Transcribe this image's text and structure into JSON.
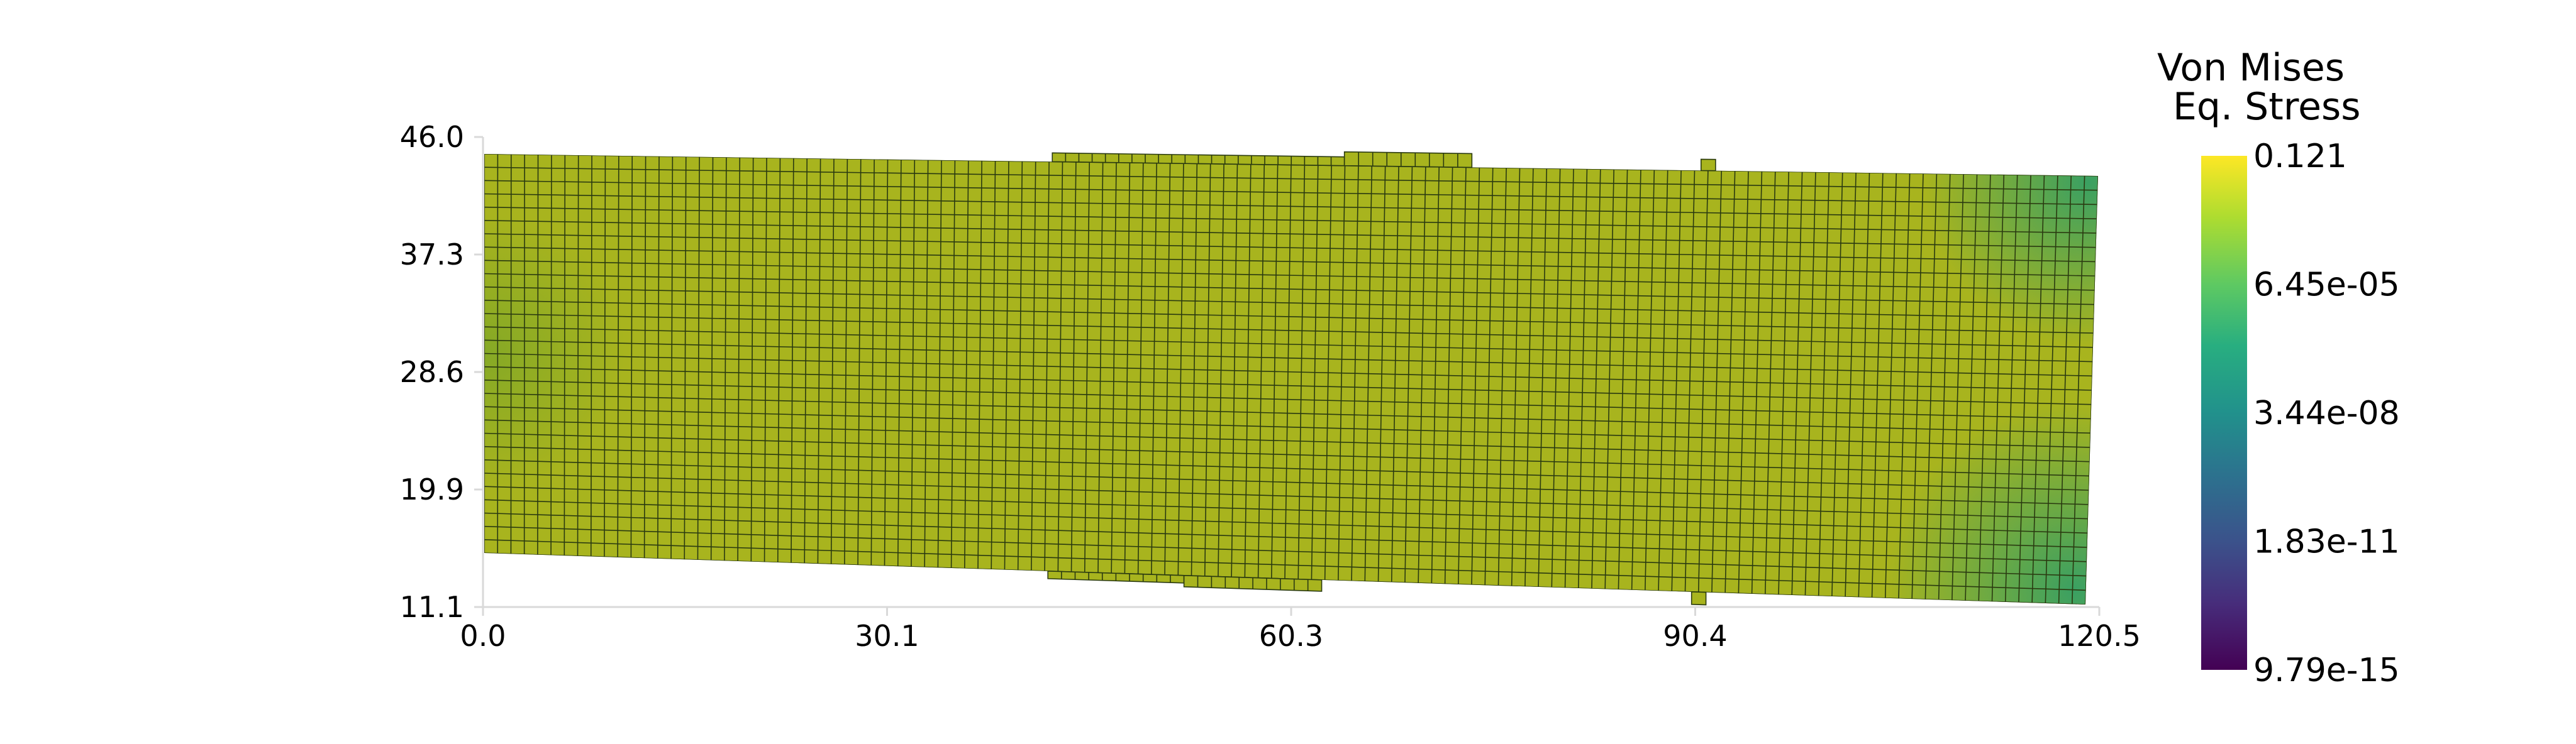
{
  "plot": {
    "x_ticks": [
      "0.0",
      "30.1",
      "60.3",
      "90.4",
      "120.5"
    ],
    "y_ticks": [
      "46.0",
      "37.3",
      "28.6",
      "19.9",
      "11.1"
    ],
    "x_range": [
      0.0,
      120.5
    ],
    "y_range": [
      11.1,
      46.0
    ]
  },
  "colorbar": {
    "title_line1": "Von Mises",
    "title_line2": "Eq. Stress",
    "labels": [
      "0.121",
      "6.45e-05",
      "3.44e-08",
      "1.83e-11",
      "9.79e-15"
    ],
    "colormap": "viridis",
    "scale": "log"
  },
  "mesh": {
    "element_count_x": 120,
    "element_count_y": 30,
    "fill_color": "#a8b41e",
    "edge_color": "#2a3a10"
  }
}
